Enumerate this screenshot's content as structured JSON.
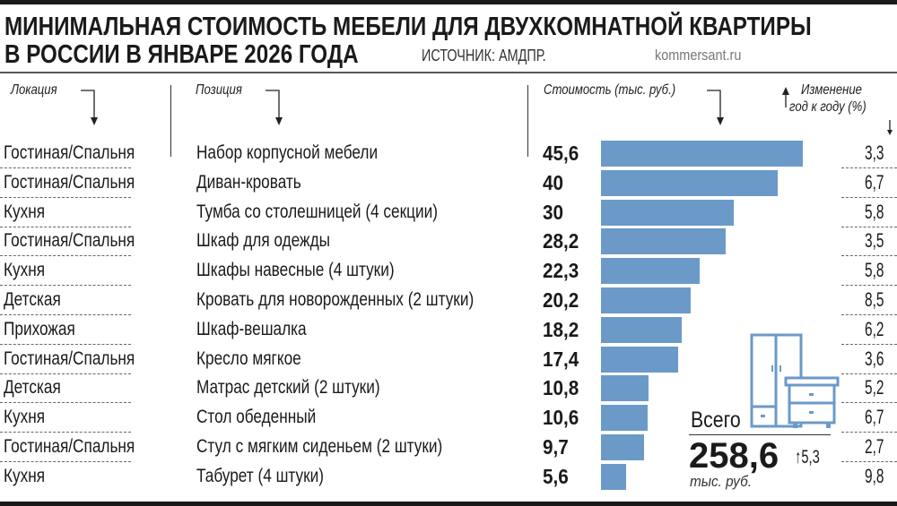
{
  "title": {
    "line1": "МИНИМАЛЬНАЯ СТОИМОСТЬ МЕБЕЛИ ДЛЯ ДВУХКОМНАТНОЙ КВАРТИРЫ",
    "line2": "В РОССИИ В ЯНВАРЕ 2026 ГОДА",
    "source": "ИСТОЧНИК: АМДПР.",
    "site": "kommersant.ru"
  },
  "headers": {
    "location": "Локация",
    "position": "Позиция",
    "cost": "Стоимость (тыс. руб.)",
    "change_line1": "Изменение",
    "change_line2": "год к году (%)"
  },
  "colors": {
    "bar": "#6b9ac8",
    "text": "#1a1a1a"
  },
  "total": {
    "label": "Всего",
    "value": "258,6",
    "change": "5,3",
    "unit": "тыс. руб.",
    "icon": "wardrobe-and-nightstand-icon"
  },
  "chart_data": {
    "type": "bar",
    "orientation": "horizontal",
    "categories": [
      "Набор корпусной мебели",
      "Диван-кровать",
      "Тумба со столешницей (4 секции)",
      "Шкаф для одежды",
      "Шкафы навесные (4 штуки)",
      "Кровать для новорожденных (2 штуки)",
      "Шкаф-вешалка",
      "Кресло мягкое",
      "Матрас детский (2 штуки)",
      "Стол обеденный",
      "Стул с мягким сиденьем (2 штуки)",
      "Табурет (4 штуки)"
    ],
    "locations": [
      "Гостиная/Спальня",
      "Гостиная/Спальня",
      "Кухня",
      "Гостиная/Спальня",
      "Кухня",
      "Детская",
      "Прихожая",
      "Гостиная/Спальня",
      "Детская",
      "Кухня",
      "Гостиная/Спальня",
      "Кухня"
    ],
    "values": [
      45.6,
      40,
      30,
      28.2,
      22.3,
      20.2,
      18.2,
      17.4,
      10.8,
      10.6,
      9.7,
      5.6
    ],
    "value_labels": [
      "45,6",
      "40",
      "30",
      "28,2",
      "22,3",
      "20,2",
      "18,2",
      "17,4",
      "10,8",
      "10,6",
      "9,7",
      "5,6"
    ],
    "yoy_change": [
      3.3,
      6.7,
      5.8,
      3.5,
      5.8,
      8.5,
      6.2,
      3.6,
      5.2,
      6.7,
      2.7,
      9.8
    ],
    "yoy_labels": [
      "3,3",
      "6,7",
      "5,8",
      "3,5",
      "5,8",
      "8,5",
      "6,2",
      "3,6",
      "5,2",
      "6,7",
      "2,7",
      "9,8"
    ],
    "unit": "тыс. руб.",
    "grid": false
  }
}
